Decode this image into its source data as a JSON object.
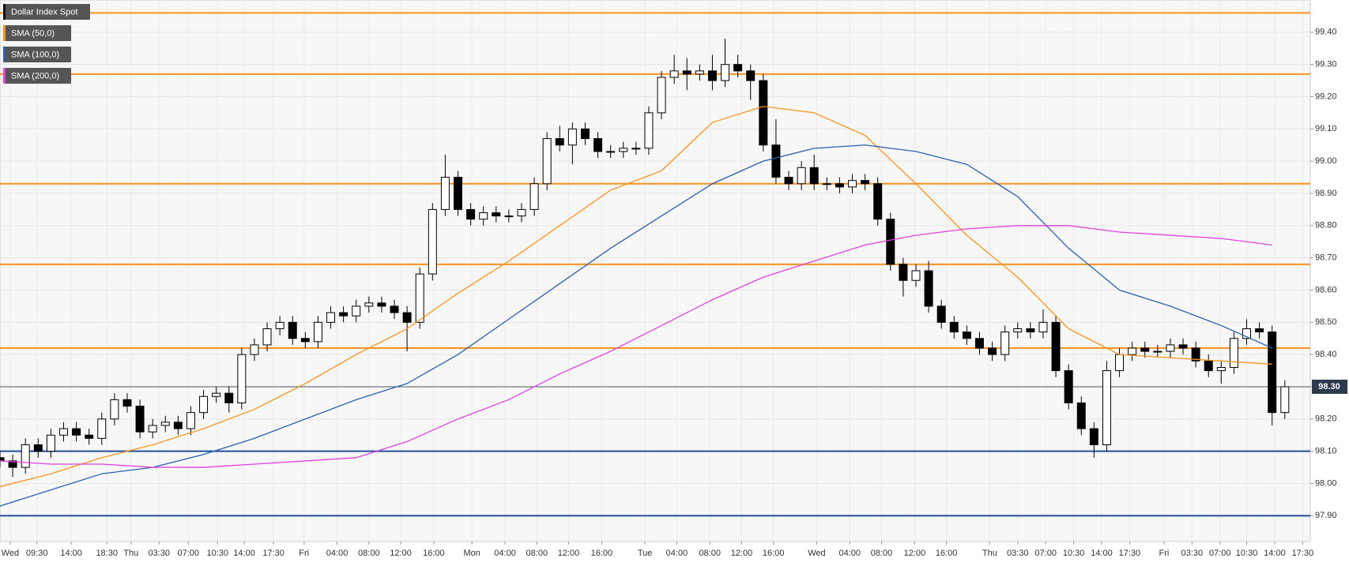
{
  "chart_data": {
    "type": "candlestick",
    "series": [
      {
        "name": "Dollar Index Spot",
        "color": "#000000",
        "open": [
          98.08,
          98.07,
          98.05,
          98.12,
          98.1,
          98.15,
          98.17,
          98.15,
          98.14,
          98.2,
          98.26,
          98.24,
          98.16,
          98.18,
          98.19,
          98.17,
          98.22,
          98.27,
          98.28,
          98.25,
          98.4,
          98.43,
          98.48,
          98.5,
          98.45,
          98.44,
          98.5,
          98.53,
          98.52,
          98.55,
          98.56,
          98.55,
          98.53,
          98.5,
          98.65,
          98.85,
          98.95,
          98.85,
          98.82,
          98.84,
          98.83,
          98.83,
          98.85,
          98.93,
          99.07,
          99.05,
          99.1,
          99.07,
          99.03,
          99.03,
          99.04,
          99.04,
          99.15,
          99.26,
          99.28,
          99.27,
          99.28,
          99.25,
          99.3,
          99.28,
          99.25,
          99.05,
          98.95,
          98.93,
          98.98,
          98.93,
          98.93,
          98.92,
          98.94,
          98.93,
          98.82,
          98.68,
          98.63,
          98.66,
          98.55,
          98.5,
          98.47,
          98.45,
          98.42,
          98.4,
          98.47,
          98.48,
          98.47,
          98.5,
          98.35,
          98.25,
          98.17,
          98.12,
          98.35,
          98.4,
          98.42,
          98.41,
          98.41,
          98.43,
          98.42,
          98.38,
          98.35,
          98.36,
          98.45,
          98.48,
          98.47,
          98.22
        ],
        "high": [
          98.1,
          98.09,
          98.14,
          98.14,
          98.17,
          98.19,
          98.19,
          98.17,
          98.22,
          98.28,
          98.28,
          98.26,
          98.2,
          98.21,
          98.21,
          98.24,
          98.29,
          98.3,
          98.3,
          98.42,
          98.45,
          98.5,
          98.52,
          98.52,
          98.47,
          98.52,
          98.55,
          98.55,
          98.57,
          98.58,
          98.58,
          98.57,
          98.55,
          98.67,
          98.87,
          99.02,
          98.97,
          98.87,
          98.86,
          98.86,
          98.85,
          98.87,
          98.95,
          99.09,
          99.11,
          99.12,
          99.12,
          99.09,
          99.05,
          99.06,
          99.06,
          99.17,
          99.28,
          99.33,
          99.32,
          99.3,
          99.33,
          99.38,
          99.33,
          99.3,
          99.27,
          99.13,
          98.97,
          99.0,
          99.02,
          98.95,
          98.95,
          98.96,
          98.96,
          98.95,
          98.84,
          98.7,
          98.68,
          98.69,
          98.57,
          98.52,
          98.49,
          98.47,
          98.44,
          98.49,
          98.5,
          98.5,
          98.54,
          98.52,
          98.37,
          98.27,
          98.19,
          98.38,
          98.42,
          98.44,
          98.44,
          98.43,
          98.45,
          98.45,
          98.44,
          98.4,
          98.38,
          98.47,
          98.51,
          98.5,
          98.49,
          98.32
        ],
        "low": [
          98.05,
          98.02,
          98.03,
          98.08,
          98.08,
          98.13,
          98.13,
          98.12,
          98.12,
          98.18,
          98.22,
          98.14,
          98.14,
          98.16,
          98.15,
          98.15,
          98.2,
          98.25,
          98.22,
          98.23,
          98.38,
          98.41,
          98.46,
          98.43,
          98.42,
          98.42,
          98.48,
          98.5,
          98.5,
          98.53,
          98.53,
          98.51,
          98.41,
          98.48,
          98.63,
          98.83,
          98.83,
          98.8,
          98.8,
          98.81,
          98.81,
          98.81,
          98.83,
          98.91,
          99.03,
          98.99,
          99.05,
          99.01,
          99.01,
          99.01,
          99.02,
          99.02,
          99.13,
          99.24,
          99.22,
          99.25,
          99.22,
          99.23,
          99.26,
          99.19,
          99.03,
          98.93,
          98.91,
          98.91,
          98.91,
          98.91,
          98.9,
          98.9,
          98.91,
          98.8,
          98.66,
          98.58,
          98.61,
          98.53,
          98.48,
          98.45,
          98.43,
          98.4,
          98.38,
          98.38,
          98.45,
          98.45,
          98.45,
          98.33,
          98.23,
          98.15,
          98.08,
          98.1,
          98.33,
          98.38,
          98.39,
          98.39,
          98.39,
          98.4,
          98.36,
          98.33,
          98.31,
          98.34,
          98.43,
          98.45,
          98.18,
          98.2
        ],
        "close": [
          98.07,
          98.05,
          98.12,
          98.1,
          98.15,
          98.17,
          98.15,
          98.14,
          98.2,
          98.26,
          98.24,
          98.16,
          98.18,
          98.19,
          98.17,
          98.22,
          98.27,
          98.28,
          98.25,
          98.4,
          98.43,
          98.48,
          98.5,
          98.45,
          98.44,
          98.5,
          98.53,
          98.52,
          98.55,
          98.56,
          98.55,
          98.53,
          98.5,
          98.65,
          98.85,
          98.95,
          98.85,
          98.82,
          98.84,
          98.83,
          98.83,
          98.85,
          98.93,
          99.07,
          99.05,
          99.1,
          99.07,
          99.03,
          99.03,
          99.04,
          99.04,
          99.15,
          99.26,
          99.28,
          99.27,
          99.28,
          99.25,
          99.3,
          99.28,
          99.25,
          99.05,
          98.95,
          98.93,
          98.98,
          98.93,
          98.93,
          98.92,
          98.94,
          98.93,
          98.82,
          98.68,
          98.63,
          98.66,
          98.55,
          98.5,
          98.47,
          98.45,
          98.42,
          98.4,
          98.47,
          98.48,
          98.47,
          98.5,
          98.35,
          98.25,
          98.17,
          98.12,
          98.35,
          98.4,
          98.42,
          98.41,
          98.41,
          98.43,
          98.42,
          98.38,
          98.35,
          98.36,
          98.45,
          98.48,
          98.47,
          98.22,
          98.3
        ]
      }
    ],
    "indicator_x": [
      0,
      4,
      8,
      12,
      16,
      20,
      24,
      28,
      32,
      36,
      40,
      44,
      48,
      52,
      56,
      60,
      64,
      68,
      72,
      76,
      80,
      84,
      88,
      92,
      96,
      100
    ],
    "indicators": [
      {
        "name": "SMA (50,0)",
        "color": "#f7931e",
        "values": [
          97.99,
          98.03,
          98.08,
          98.12,
          98.17,
          98.23,
          98.31,
          98.4,
          98.48,
          98.59,
          98.69,
          98.8,
          98.91,
          98.97,
          99.12,
          99.17,
          99.15,
          99.08,
          98.93,
          98.77,
          98.64,
          98.48,
          98.4,
          98.39,
          98.38,
          98.37
        ]
      },
      {
        "name": "SMA (100,0)",
        "color": "#2b5fb0",
        "values": [
          97.93,
          97.98,
          98.03,
          98.05,
          98.09,
          98.14,
          98.2,
          98.26,
          98.31,
          98.4,
          98.51,
          98.62,
          98.73,
          98.83,
          98.93,
          99.0,
          99.04,
          99.05,
          99.03,
          98.99,
          98.89,
          98.73,
          98.6,
          98.55,
          98.49,
          98.42
        ]
      },
      {
        "name": "SMA (200,0)",
        "color": "#e040e0",
        "values": [
          98.07,
          98.06,
          98.06,
          98.05,
          98.05,
          98.06,
          98.07,
          98.08,
          98.13,
          98.2,
          98.26,
          98.34,
          98.41,
          98.49,
          98.57,
          98.64,
          98.69,
          98.74,
          98.77,
          98.79,
          98.8,
          98.8,
          98.78,
          98.77,
          98.76,
          98.74
        ]
      }
    ],
    "levels": [
      {
        "value": 99.46,
        "color": "#f7931e"
      },
      {
        "value": 99.27,
        "color": "#f7931e"
      },
      {
        "value": 98.93,
        "color": "#f7931e"
      },
      {
        "value": 98.68,
        "color": "#f7931e"
      },
      {
        "value": 98.42,
        "color": "#f7931e"
      },
      {
        "value": 98.1,
        "color": "#1f4e9c"
      },
      {
        "value": 97.9,
        "color": "#1f4e9c"
      }
    ],
    "last_price": {
      "value": 98.3,
      "label": "98.30"
    },
    "xlim": [
      0,
      103
    ],
    "ylim": [
      97.82,
      99.5
    ],
    "yticks": [
      {
        "value": 97.9,
        "label": "97.90"
      },
      {
        "value": 98.0,
        "label": "98.00"
      },
      {
        "value": 98.1,
        "label": "98.10"
      },
      {
        "value": 98.2,
        "label": "98.20"
      },
      {
        "value": 98.3,
        "label": "98.30"
      },
      {
        "value": 98.4,
        "label": "98.40"
      },
      {
        "value": 98.5,
        "label": "98.50"
      },
      {
        "value": 98.6,
        "label": "98.60"
      },
      {
        "value": 98.7,
        "label": "98.70"
      },
      {
        "value": 98.8,
        "label": "98.80"
      },
      {
        "value": 98.9,
        "label": "98.90"
      },
      {
        "value": 99.0,
        "label": "99.00"
      },
      {
        "value": 99.1,
        "label": "99.10"
      },
      {
        "value": 99.2,
        "label": "99.20"
      },
      {
        "value": 99.3,
        "label": "99.30"
      },
      {
        "value": 99.4,
        "label": "99.40"
      }
    ],
    "xticks": [
      {
        "value": 0.8,
        "label": "Wed"
      },
      {
        "value": 2.9,
        "label": "09:30"
      },
      {
        "value": 5.6,
        "label": "14:00"
      },
      {
        "value": 8.4,
        "label": "18:30"
      },
      {
        "value": 10.3,
        "label": "Thu"
      },
      {
        "value": 12.5,
        "label": "03:30"
      },
      {
        "value": 14.8,
        "label": "07:00"
      },
      {
        "value": 17.1,
        "label": "10:30"
      },
      {
        "value": 19.2,
        "label": "14:00"
      },
      {
        "value": 21.5,
        "label": "17:30"
      },
      {
        "value": 23.9,
        "label": "Fri"
      },
      {
        "value": 26.5,
        "label": "04:00"
      },
      {
        "value": 29.0,
        "label": "08:00"
      },
      {
        "value": 31.5,
        "label": "12:00"
      },
      {
        "value": 34.1,
        "label": "16:00"
      },
      {
        "value": 37.1,
        "label": "Mon"
      },
      {
        "value": 39.7,
        "label": "04:00"
      },
      {
        "value": 42.2,
        "label": "08:00"
      },
      {
        "value": 44.7,
        "label": "12:00"
      },
      {
        "value": 47.3,
        "label": "16:00"
      },
      {
        "value": 50.7,
        "label": "Tue"
      },
      {
        "value": 53.2,
        "label": "04:00"
      },
      {
        "value": 55.8,
        "label": "08:00"
      },
      {
        "value": 58.3,
        "label": "12:00"
      },
      {
        "value": 60.8,
        "label": "16:00"
      },
      {
        "value": 64.2,
        "label": "Wed"
      },
      {
        "value": 66.8,
        "label": "04:00"
      },
      {
        "value": 69.3,
        "label": "08:00"
      },
      {
        "value": 71.9,
        "label": "12:00"
      },
      {
        "value": 74.4,
        "label": "16:00"
      },
      {
        "value": 77.8,
        "label": "Thu"
      },
      {
        "value": 80.0,
        "label": "03:30"
      },
      {
        "value": 82.2,
        "label": "07:00"
      },
      {
        "value": 84.4,
        "label": "10:30"
      },
      {
        "value": 86.6,
        "label": "14:00"
      },
      {
        "value": 88.8,
        "label": "17:30"
      },
      {
        "value": 91.5,
        "label": "Fri"
      },
      {
        "value": 93.7,
        "label": "03:30"
      },
      {
        "value": 95.9,
        "label": "07:00"
      },
      {
        "value": 98.0,
        "label": "10:30"
      },
      {
        "value": 100.2,
        "label": "14:00"
      },
      {
        "value": 102.4,
        "label": "17:30"
      }
    ],
    "grid": true
  }
}
